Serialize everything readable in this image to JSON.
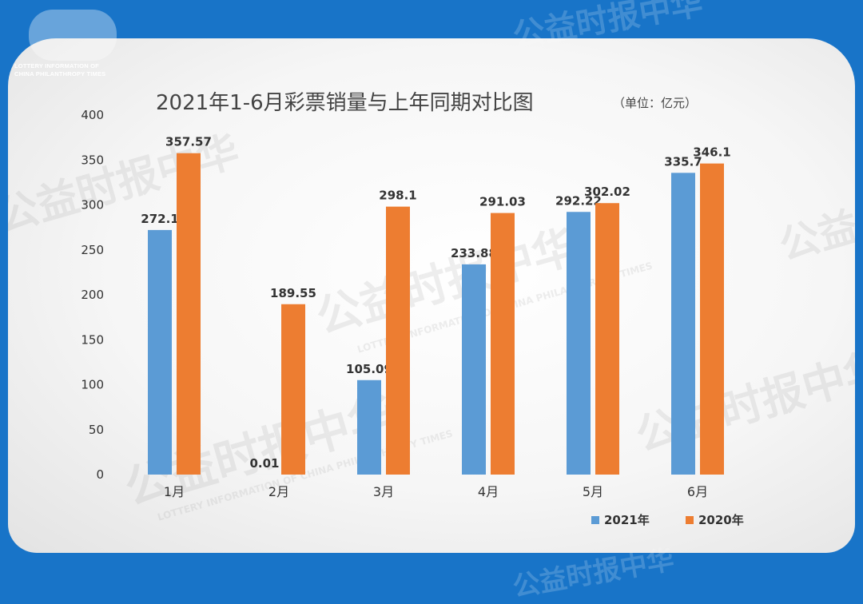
{
  "header": {
    "logo_line1": "LOTTERY INFORMATION OF",
    "logo_line2": "CHINA PHILANTHROPY TIMES"
  },
  "watermark": {
    "brand": "公益时报中华",
    "tagline": "LOTTERY INFORMATION OF CHINA PHILANTHROPY TIMES"
  },
  "chart_data": {
    "type": "bar",
    "title": "2021年1-6月彩票销量与上年同期对比图",
    "unit_label": "（单位：亿元）",
    "categories": [
      "1月",
      "2月",
      "3月",
      "4月",
      "5月",
      "6月"
    ],
    "ylim": [
      0,
      400
    ],
    "yticks": [
      "0",
      "50",
      "100",
      "150",
      "200",
      "250",
      "300",
      "350",
      "400"
    ],
    "grid": false,
    "legend_position": "bottom-right",
    "series": [
      {
        "name": "2021年",
        "color": "#5b9bd5",
        "values": [
          272.1,
          0.01,
          105.09,
          233.88,
          292.22,
          335.7
        ],
        "labels": [
          "272.1",
          "0.01",
          "105.09",
          "233.88",
          "292.22",
          "335.7"
        ]
      },
      {
        "name": "2020年",
        "color": "#ed7d31",
        "values": [
          357.57,
          189.55,
          298.1,
          291.03,
          302.02,
          346.1
        ],
        "labels": [
          "357.57",
          "189.55",
          "298.1",
          "291.03",
          "302.02",
          "346.1"
        ]
      }
    ]
  }
}
